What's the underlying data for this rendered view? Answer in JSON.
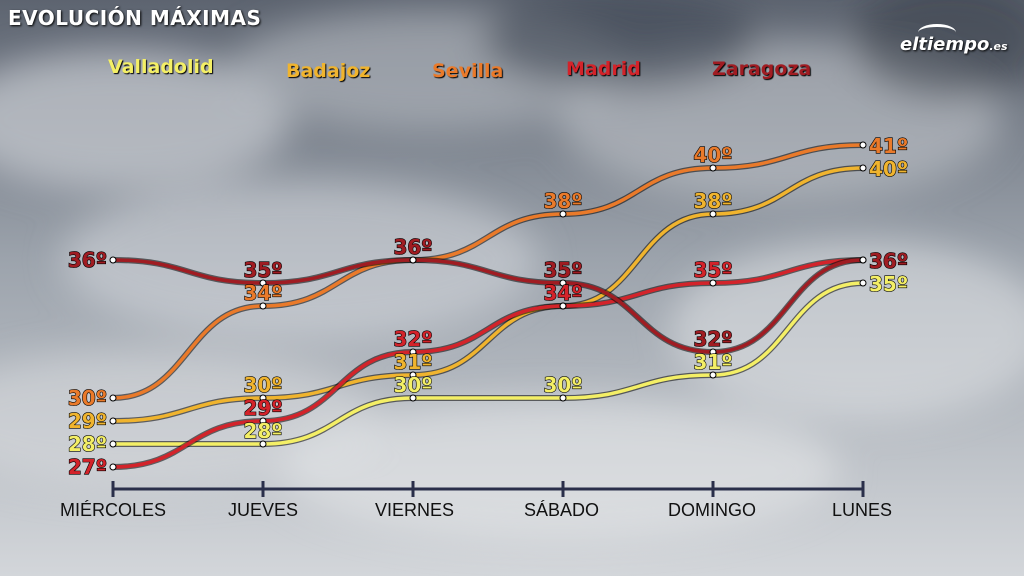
{
  "header": {
    "title": "EVOLUCIÓN MÁXIMAS",
    "brand_name": "eltiempo",
    "brand_tld": ".es"
  },
  "colors": {
    "Valladolid": "#f4ef66",
    "Badajoz": "#f0b42e",
    "Sevilla": "#ea7a2a",
    "Madrid": "#d3232a",
    "Zaragoza": "#a01c22",
    "axis": "#2a2f4a"
  },
  "chart_data": {
    "type": "line",
    "title": "EVOLUCIÓN MÁXIMAS",
    "categories": [
      "MIÉRCOLES",
      "JUEVES",
      "VIERNES",
      "SÁBADO",
      "DOMINGO",
      "LUNES"
    ],
    "unit": "º",
    "legend_position": "top",
    "grid": false,
    "series": [
      {
        "name": "Valladolid",
        "values": [
          28,
          28,
          30,
          30,
          31,
          35
        ]
      },
      {
        "name": "Badajoz",
        "values": [
          29,
          30,
          31,
          34,
          38,
          40
        ]
      },
      {
        "name": "Sevilla",
        "values": [
          30,
          34,
          36,
          38,
          40,
          41
        ]
      },
      {
        "name": "Madrid",
        "values": [
          27,
          29,
          32,
          34,
          35,
          36
        ]
      },
      {
        "name": "Zaragoza",
        "values": [
          36,
          35,
          36,
          35,
          32,
          36
        ]
      }
    ],
    "labels": [
      {
        "series": "Valladolid",
        "texts": [
          "28º",
          "28º",
          "30º",
          "30º",
          "31º",
          "35º"
        ]
      },
      {
        "series": "Badajoz",
        "texts": [
          "29º",
          "30º",
          "31º",
          "",
          "38º",
          "40º"
        ]
      },
      {
        "series": "Sevilla",
        "texts": [
          "30º",
          "34º",
          "",
          "38º",
          "40º",
          "41º"
        ]
      },
      {
        "series": "Madrid",
        "texts": [
          "27º",
          "29º",
          "32º",
          "34º",
          "35º",
          ""
        ]
      },
      {
        "series": "Zaragoza",
        "texts": [
          "36º",
          "35º",
          "36º",
          "35º",
          "32º",
          "36º"
        ]
      }
    ]
  }
}
